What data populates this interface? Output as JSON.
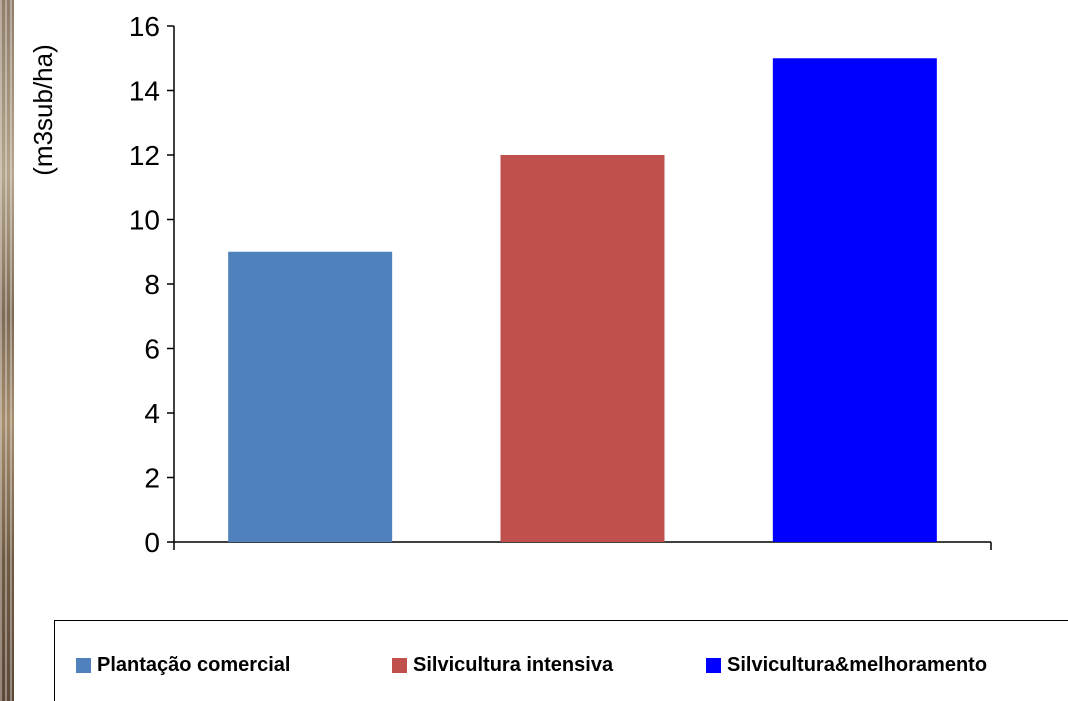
{
  "chart_data": {
    "type": "bar",
    "categories": [
      "Plantação comercial",
      "Silvicultura intensiva",
      "Silvicultura&melhoramento"
    ],
    "values": [
      9,
      12,
      15
    ],
    "colors": [
      "#4F81BD",
      "#C0504D",
      "#0000FF"
    ],
    "ylabel": "(m3sub/ha)",
    "ylim": [
      0,
      16
    ],
    "yticks": [
      "0",
      "2",
      "4",
      "6",
      "8",
      "10",
      "12",
      "14",
      "16"
    ],
    "grid": false,
    "legend_position": "bottom"
  }
}
